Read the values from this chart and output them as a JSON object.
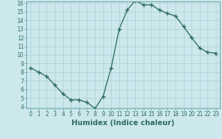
{
  "x": [
    0,
    1,
    2,
    3,
    4,
    5,
    6,
    7,
    8,
    9,
    10,
    11,
    12,
    13,
    14,
    15,
    16,
    17,
    18,
    19,
    20,
    21,
    22,
    23
  ],
  "y": [
    8.5,
    8.0,
    7.5,
    6.5,
    5.5,
    4.8,
    4.8,
    4.5,
    3.8,
    5.2,
    8.5,
    13.0,
    15.2,
    16.3,
    15.8,
    15.8,
    15.2,
    14.8,
    14.5,
    13.3,
    12.0,
    10.8,
    10.3,
    10.2
  ],
  "line_color": "#2e6b5e",
  "marker": "+",
  "marker_size": 4,
  "marker_lw": 1.0,
  "bg_color": "#cce8ec",
  "grid_color": "#b0d0d8",
  "xlabel": "Humidex (Indice chaleur)",
  "ylim": [
    4,
    16
  ],
  "xlim": [
    -0.5,
    23.5
  ],
  "yticks": [
    4,
    5,
    6,
    7,
    8,
    9,
    10,
    11,
    12,
    13,
    14,
    15,
    16
  ],
  "xticks": [
    0,
    1,
    2,
    3,
    4,
    5,
    6,
    7,
    8,
    9,
    10,
    11,
    12,
    13,
    14,
    15,
    16,
    17,
    18,
    19,
    20,
    21,
    22,
    23
  ],
  "tick_fontsize": 5.5,
  "xlabel_fontsize": 7.5,
  "xlabel_fontweight": "bold"
}
